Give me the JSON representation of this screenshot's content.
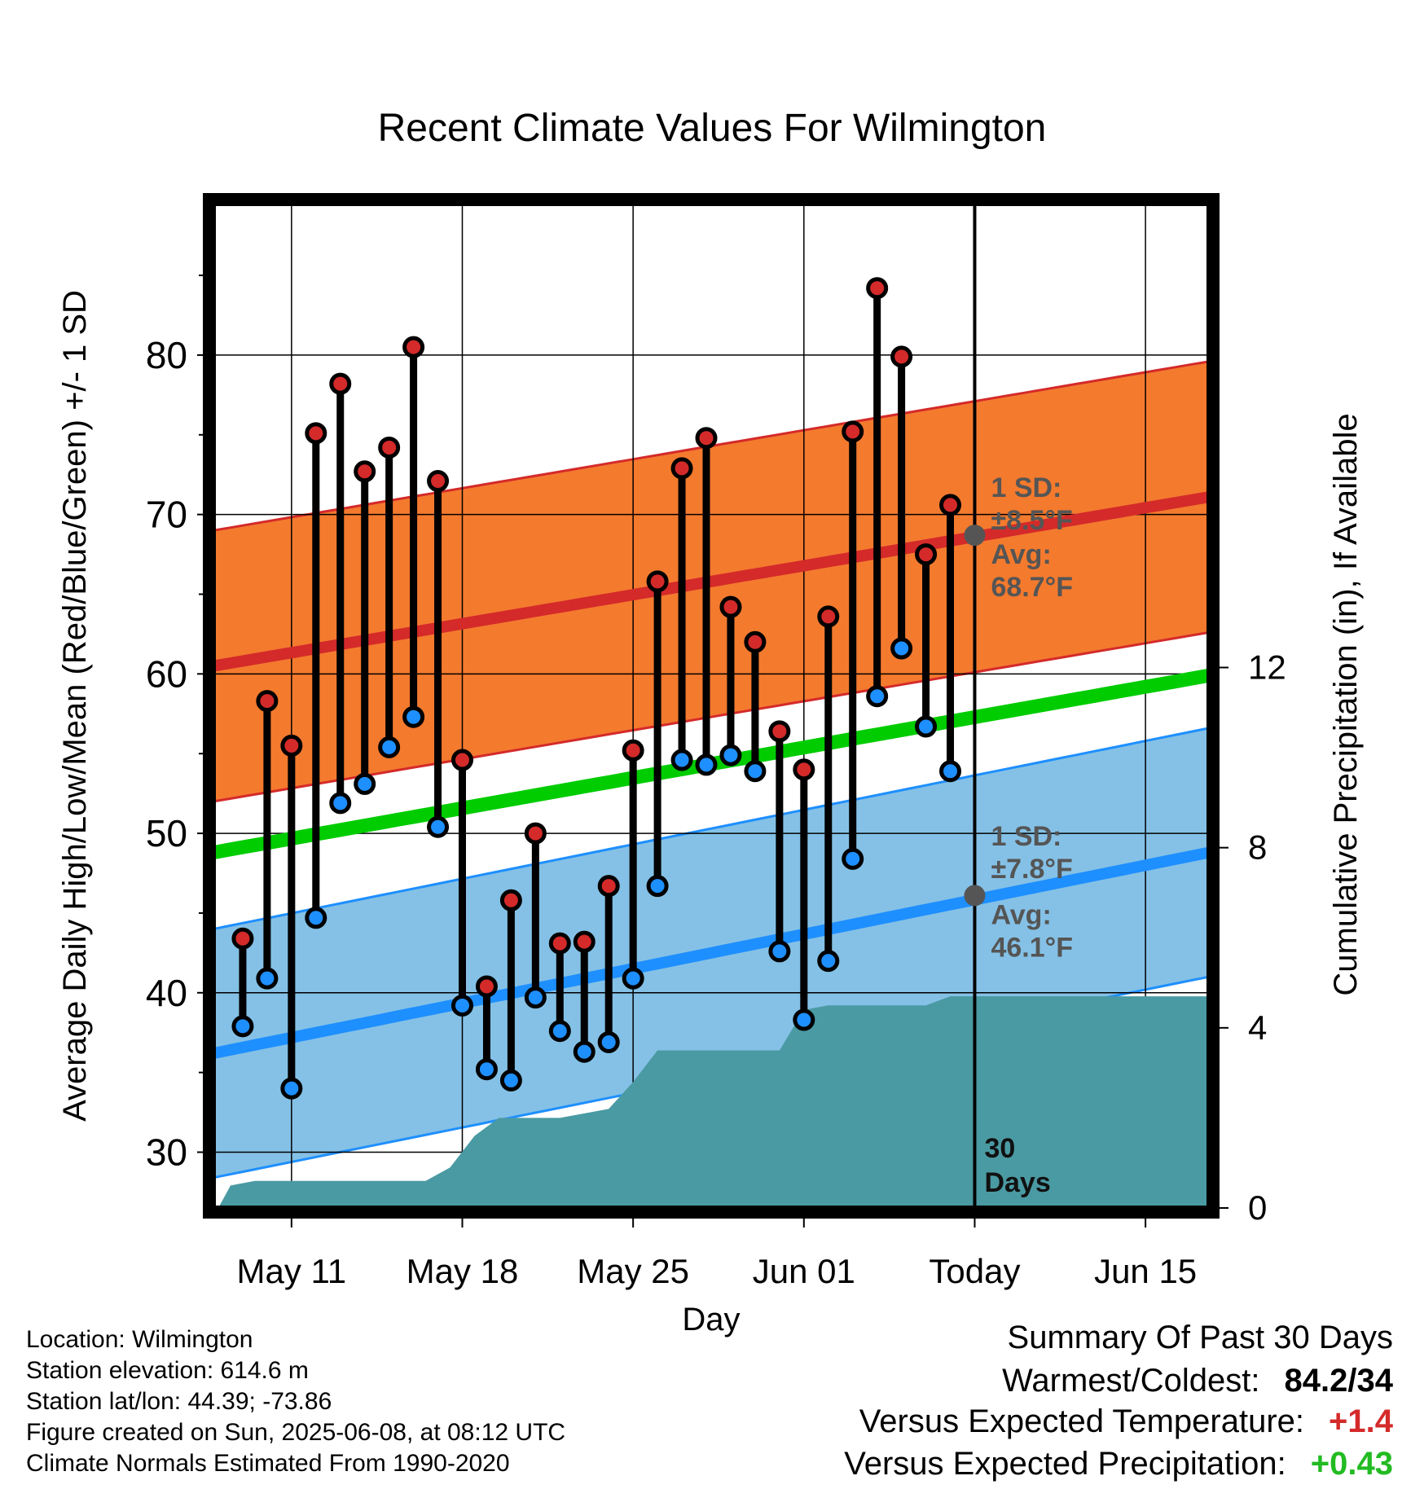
{
  "chart_data": {
    "type": "line",
    "title": "Recent Climate Values For Wilmington",
    "xlabel": "Day",
    "ylabel_left": "Average Daily High/Low/Mean (Red/Blue/Green) +/- 1 SD",
    "ylabel_right": "Cumulative Precipitation (in), If Available",
    "x_ticks": [
      "May 11",
      "May 18",
      "May 25",
      "Jun 01",
      "Today",
      "Jun 15"
    ],
    "x_tick_days": [
      11,
      18,
      25,
      32,
      39,
      46
    ],
    "xlim": [
      7.8,
      48.6
    ],
    "y_ticks": [
      "30",
      "40",
      "50",
      "60",
      "70",
      "80"
    ],
    "ylim": [
      26.5,
      89.5
    ],
    "y2_ticks": [
      "0",
      "4",
      "8",
      "12"
    ],
    "y2lim": [
      0,
      22.3
    ],
    "today_day": 39,
    "days": [
      9,
      10,
      11,
      12,
      13,
      14,
      15,
      16,
      17,
      18,
      19,
      20,
      21,
      22,
      23,
      24,
      25,
      26,
      27,
      28,
      29,
      30,
      31,
      32,
      33,
      34,
      35,
      36,
      37,
      38
    ],
    "highs": [
      43.4,
      58.3,
      55.5,
      75.1,
      78.2,
      72.7,
      74.2,
      80.5,
      72.1,
      54.6,
      40.4,
      45.8,
      50.0,
      43.1,
      43.2,
      46.7,
      55.2,
      65.8,
      72.9,
      74.8,
      64.2,
      62.0,
      56.4,
      54.0,
      63.6,
      75.2,
      84.2,
      79.9,
      67.5,
      70.6
    ],
    "lows": [
      37.9,
      40.9,
      34.0,
      44.7,
      51.9,
      53.1,
      55.4,
      57.3,
      50.4,
      39.2,
      35.2,
      34.5,
      39.7,
      37.6,
      36.3,
      36.9,
      40.9,
      46.7,
      54.6,
      54.3,
      54.9,
      53.9,
      42.6,
      38.3,
      42.0,
      48.4,
      58.6,
      61.6,
      56.7,
      53.9
    ],
    "normal_high": {
      "start": 60.5,
      "end": 71.1,
      "sd": 8.5
    },
    "normal_low": {
      "start": 36.2,
      "end": 48.8,
      "sd": 7.8
    },
    "normal_mean": {
      "start": 48.8,
      "end": 59.9
    },
    "precip_cumulative": {
      "days": [
        8.0,
        8.5,
        9.5,
        11.0,
        12.5,
        14.5,
        16.5,
        17.5,
        18.5,
        19.5,
        21.0,
        22.0,
        23.0,
        24.0,
        25.0,
        26.0,
        28.0,
        29.0,
        30.0,
        31.0,
        32.0,
        33.0,
        35.0,
        36.0,
        37.0,
        38.0,
        39.0,
        48.6
      ],
      "values": [
        0.0,
        0.5,
        0.6,
        0.6,
        0.6,
        0.6,
        0.6,
        0.9,
        1.6,
        2.0,
        2.0,
        2.0,
        2.1,
        2.2,
        2.8,
        3.5,
        3.5,
        3.5,
        3.5,
        3.5,
        4.4,
        4.5,
        4.5,
        4.5,
        4.5,
        4.7,
        4.7,
        4.7
      ]
    },
    "annotations": {
      "high_sd_label": [
        "1 SD:",
        "±8.5°F"
      ],
      "high_avg_label": [
        "Avg:",
        "68.7°F"
      ],
      "low_sd_label": [
        "1 SD:",
        "±7.8°F"
      ],
      "low_avg_label": [
        "Avg:",
        "46.1°F"
      ],
      "high_avg_value": 68.7,
      "low_avg_value": 46.1,
      "days_label": [
        "30",
        "Days"
      ]
    },
    "colors": {
      "high_band": "#f47a2e",
      "high_line": "#d42a2a",
      "low_band": "#85c1e6",
      "low_line": "#1e8fff",
      "mean_line": "#00cc00",
      "precip": "#4a9aa3",
      "high_dot": "#d42a2a",
      "low_dot": "#1e8fff",
      "annotation_text": "#555555"
    }
  },
  "footer": {
    "location": "Location: Wilmington",
    "elevation": "Station elevation: 614.6 m",
    "latlon": "Station lat/lon: 44.39; -73.86",
    "created": "Figure created on Sun, 2025-06-08, at 08:12 UTC",
    "normals": "Climate Normals Estimated From 1990-2020"
  },
  "summary": {
    "heading": "Summary Of Past 30 Days",
    "warmest_label": "Warmest/Coldest:",
    "warmest_value": "84.2/34",
    "temp_label": "Versus Expected Temperature:",
    "temp_value": "+1.4",
    "temp_color": "#d42a2a",
    "precip_label": "Versus Expected Precipitation:",
    "precip_value": "+0.43",
    "precip_color": "#22bb22"
  }
}
